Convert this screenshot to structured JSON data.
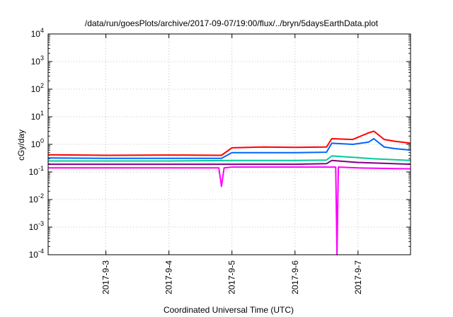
{
  "chart_data": {
    "type": "line",
    "title": "/data/run/goesPlots/archive/2017-09-07/19:00/flux/../bryn/5daysEarthData.plot",
    "xlabel": "Coordinated Universal Time (UTC)",
    "ylabel": "cGy/day",
    "yscale": "log",
    "ylim": [
      0.0001,
      10000
    ],
    "xlim": [
      "2017-09-02 02:00",
      "2017-09-07 20:00"
    ],
    "y_ticks": [
      {
        "value": 0.0001,
        "base": "10",
        "exp": "-4"
      },
      {
        "value": 0.001,
        "base": "10",
        "exp": "-3"
      },
      {
        "value": 0.01,
        "base": "10",
        "exp": "-2"
      },
      {
        "value": 0.1,
        "base": "10",
        "exp": "-1"
      },
      {
        "value": 1,
        "base": "10",
        "exp": "0"
      },
      {
        "value": 10,
        "base": "10",
        "exp": "1"
      },
      {
        "value": 100,
        "base": "10",
        "exp": "2"
      },
      {
        "value": 1000,
        "base": "10",
        "exp": "3"
      },
      {
        "value": 10000,
        "base": "10",
        "exp": "4"
      }
    ],
    "x_ticks": [
      {
        "value": "2017-09-03 00:00",
        "label": "2017-9-3"
      },
      {
        "value": "2017-09-04 00:00",
        "label": "2017-9-4"
      },
      {
        "value": "2017-09-05 00:00",
        "label": "2017-9-5"
      },
      {
        "value": "2017-09-06 00:00",
        "label": "2017-9-6"
      },
      {
        "value": "2017-09-07 00:00",
        "label": "2017-9-7"
      }
    ],
    "grid": true,
    "series": [
      {
        "color": "#ff0000",
        "x": [
          "2017-09-02 02:00",
          "2017-09-03 00:00",
          "2017-09-04 00:00",
          "2017-09-04 20:00",
          "2017-09-05 00:00",
          "2017-09-05 12:00",
          "2017-09-06 00:00",
          "2017-09-06 12:00",
          "2017-09-06 14:00",
          "2017-09-06 22:00",
          "2017-09-07 04:00",
          "2017-09-07 06:00",
          "2017-09-07 10:00",
          "2017-09-07 14:00",
          "2017-09-07 20:00"
        ],
        "values": [
          0.42,
          0.4,
          0.41,
          0.4,
          0.75,
          0.8,
          0.78,
          0.8,
          1.6,
          1.5,
          2.6,
          3.0,
          1.5,
          1.3,
          1.1
        ]
      },
      {
        "color": "#0066ff",
        "x": [
          "2017-09-02 02:00",
          "2017-09-03 00:00",
          "2017-09-04 00:00",
          "2017-09-04 20:00",
          "2017-09-05 00:00",
          "2017-09-05 12:00",
          "2017-09-06 00:00",
          "2017-09-06 12:00",
          "2017-09-06 14:00",
          "2017-09-06 22:00",
          "2017-09-07 04:00",
          "2017-09-07 06:00",
          "2017-09-07 10:00",
          "2017-09-07 14:00",
          "2017-09-07 20:00"
        ],
        "values": [
          0.32,
          0.31,
          0.31,
          0.31,
          0.5,
          0.5,
          0.5,
          0.52,
          1.1,
          1.0,
          1.2,
          1.6,
          0.8,
          0.7,
          0.62
        ]
      },
      {
        "color": "#00cc99",
        "x": [
          "2017-09-02 02:00",
          "2017-09-03 00:00",
          "2017-09-04 00:00",
          "2017-09-05 00:00",
          "2017-09-06 00:00",
          "2017-09-06 12:00",
          "2017-09-06 14:00",
          "2017-09-07 00:00",
          "2017-09-07 06:00",
          "2017-09-07 20:00"
        ],
        "values": [
          0.25,
          0.25,
          0.25,
          0.26,
          0.26,
          0.27,
          0.38,
          0.33,
          0.3,
          0.26
        ]
      },
      {
        "color": "#800080",
        "x": [
          "2017-09-02 02:00",
          "2017-09-03 00:00",
          "2017-09-04 00:00",
          "2017-09-05 00:00",
          "2017-09-06 00:00",
          "2017-09-06 12:00",
          "2017-09-06 14:00",
          "2017-09-07 00:00",
          "2017-09-07 20:00"
        ],
        "values": [
          0.19,
          0.19,
          0.19,
          0.19,
          0.19,
          0.2,
          0.26,
          0.22,
          0.19
        ]
      },
      {
        "color": "#ff00ff",
        "x": [
          "2017-09-02 02:00",
          "2017-09-03 00:00",
          "2017-09-04 00:00",
          "2017-09-04 19:00",
          "2017-09-04 20:00",
          "2017-09-04 21:00",
          "2017-09-05 00:00",
          "2017-09-06 00:00",
          "2017-09-06 15:30",
          "2017-09-06 16:00",
          "2017-09-06 16:30",
          "2017-09-07 00:00",
          "2017-09-07 20:00"
        ],
        "values": [
          0.14,
          0.14,
          0.14,
          0.14,
          0.03,
          0.14,
          0.15,
          0.15,
          0.15,
          0.0001,
          0.15,
          0.14,
          0.13
        ]
      }
    ]
  }
}
